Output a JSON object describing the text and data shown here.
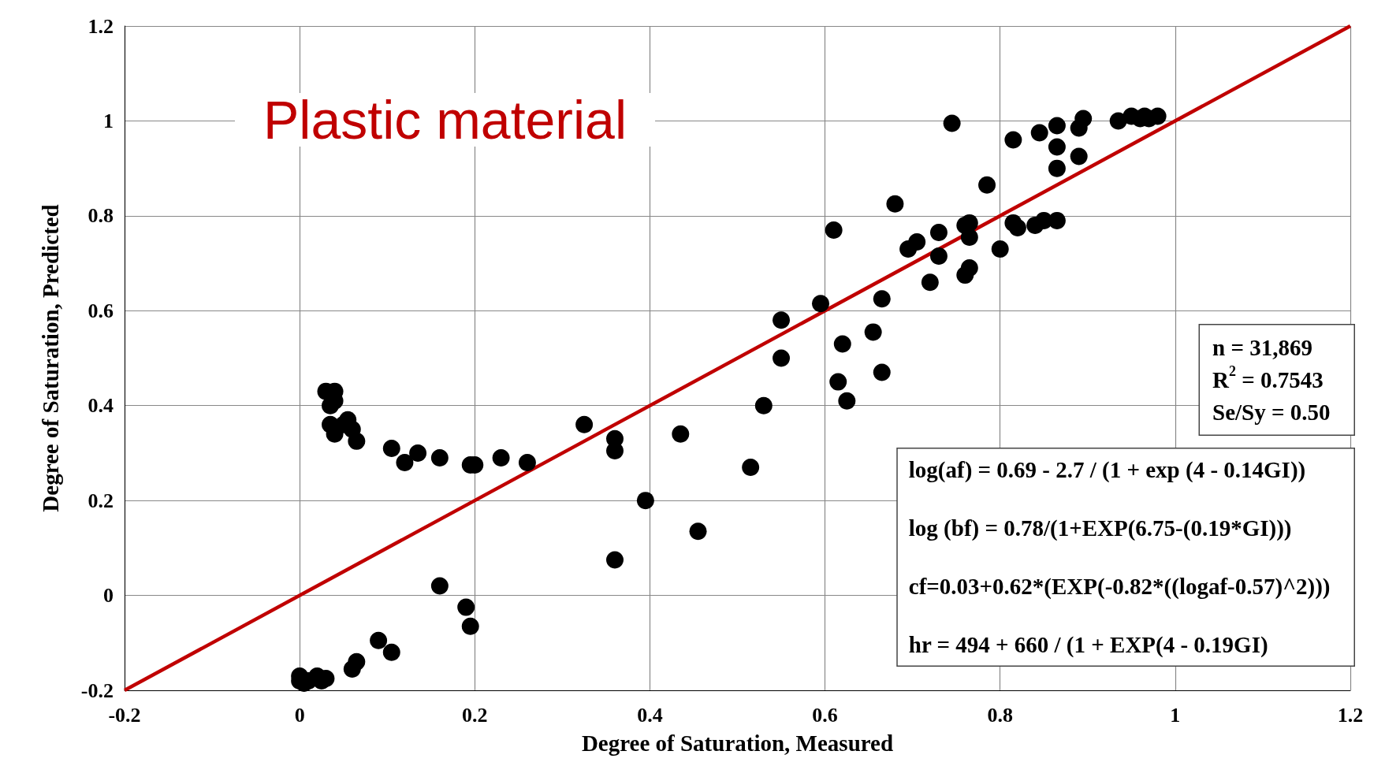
{
  "chart_data": {
    "type": "scatter",
    "title": "Plastic material",
    "xlabel": "Degree of Saturation, Measured",
    "ylabel": "Degree of Saturation, Predicted",
    "xlim": [
      -0.2,
      1.2
    ],
    "xticks": [
      -0.2,
      0,
      0.2,
      0.4,
      0.6,
      0.8,
      1,
      1.2
    ],
    "ylim": [
      -0.2,
      1.2
    ],
    "yticks": [
      -0.2,
      0,
      0.2,
      0.4,
      0.6,
      0.8,
      1,
      1.2
    ],
    "grid": true,
    "marker": "circle",
    "series": [
      {
        "color": "#000000",
        "x": [
          0.03,
          0.04,
          0.04,
          0.035,
          0.035,
          0.055,
          0.05,
          0.06,
          0.04,
          0.065,
          0.105,
          0.12,
          0.135,
          0.16,
          0.195,
          0.2,
          0.23,
          0.26,
          0.325,
          0.36,
          0.36,
          0.435,
          0.395,
          0.455,
          0.36,
          0.515,
          0.53,
          0,
          0,
          0.005,
          0.01,
          0.02,
          0.025,
          0.03,
          0.06,
          0.065,
          0.09,
          0.105,
          0.16,
          0.19,
          0.195,
          0.55,
          0.55,
          0.595,
          0.61,
          0.615,
          0.62,
          0.625,
          0.655,
          0.665,
          0.665,
          0.68,
          0.695,
          0.705,
          0.72,
          0.73,
          0.73,
          0.745,
          0.76,
          0.765,
          0.765,
          0.76,
          0.765,
          0.785,
          0.8,
          0.815,
          0.815,
          0.82,
          0.84,
          0.85,
          0.865,
          0.845,
          0.865,
          0.865,
          0.865,
          0.89,
          0.895,
          0.89,
          0.935,
          0.95,
          0.96,
          0.965,
          0.97,
          0.98
        ],
        "values": [
          0.43,
          0.43,
          0.41,
          0.4,
          0.36,
          0.37,
          0.36,
          0.35,
          0.34,
          0.325,
          0.31,
          0.28,
          0.3,
          0.29,
          0.275,
          0.275,
          0.29,
          0.28,
          0.36,
          0.33,
          0.305,
          0.34,
          0.2,
          0.135,
          0.075,
          0.27,
          0.4,
          -0.17,
          -0.18,
          -0.185,
          -0.18,
          -0.17,
          -0.18,
          -0.175,
          -0.155,
          -0.14,
          -0.095,
          -0.12,
          0.02,
          -0.025,
          -0.065,
          0.58,
          0.5,
          0.615,
          0.77,
          0.45,
          0.53,
          0.41,
          0.555,
          0.625,
          0.47,
          0.825,
          0.73,
          0.745,
          0.66,
          0.715,
          0.765,
          0.995,
          0.78,
          0.785,
          0.755,
          0.675,
          0.69,
          0.865,
          0.73,
          0.96,
          0.785,
          0.775,
          0.78,
          0.79,
          0.79,
          0.975,
          0.99,
          0.945,
          0.9,
          0.985,
          1.005,
          0.925,
          1.0,
          1.01,
          1.005,
          1.01,
          1.005,
          1.01
        ]
      },
      {
        "type": "line",
        "color": "#c00000",
        "marker": "none",
        "line_style": "solid",
        "x": [
          -0.2,
          1.2
        ],
        "values": [
          -0.2,
          1.2
        ]
      }
    ],
    "annotations": [
      "n = 31,869\nR$^{2}$ = 0.7543\nSe/Sy = 0.50",
      "log(af) = 0.69 - 2.7 / (1 + exp (4 - 0.14GI))\n\nlog (bf) = 0.78/(1+EXP(6.75-(0.19*GI)))\n\ncf=0.03+0.62*(EXP(-0.82*((logaf-0.57)^2)))\n\nhr = 494 + 660 / (1 + EXP(4 - 0.19GI)"
    ]
  }
}
